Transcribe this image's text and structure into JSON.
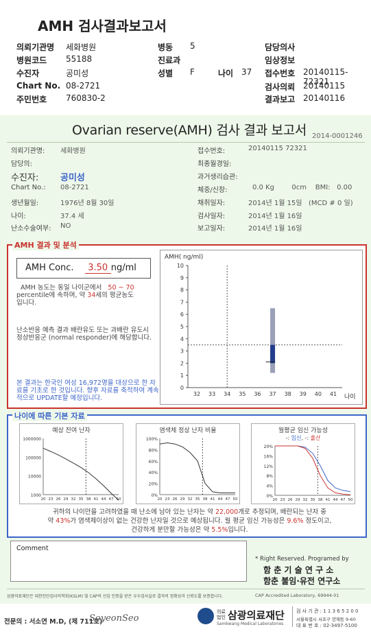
{
  "header": {
    "title": "AMH 검사결과보고서",
    "left": [
      {
        "label": "의뢰기관명",
        "value": "세화병원"
      },
      {
        "label": "병원코드",
        "value": "55188"
      },
      {
        "label": "수진자",
        "value": "공미성"
      },
      {
        "label": "Chart No.",
        "value": "08-2721"
      },
      {
        "label": "주민번호",
        "value": "760830-2"
      }
    ],
    "mid": {
      "ward_label": "병동",
      "ward_value": "5",
      "dept_label": "진료과",
      "sex_label": "성별",
      "sex_value": "F",
      "age_label": "나이",
      "age_value": "37"
    },
    "right": [
      {
        "label": "담당의사",
        "value": ""
      },
      {
        "label": "임상정보",
        "value": ""
      },
      {
        "label": "접수번호",
        "value": "20140115-72321"
      },
      {
        "label": "검사의뢰",
        "value": "20140115"
      },
      {
        "label": "결과보고",
        "value": "20140116"
      }
    ]
  },
  "report": {
    "title": "Ovarian reserve(AMH) 검사 결과 보고서",
    "doc_no": "2014-0001246",
    "left_fields": [
      {
        "label": "의뢰기관명:",
        "value": "세화병원"
      },
      {
        "label": "담당의:",
        "value": ""
      },
      {
        "label": "수진자:",
        "value": "공미성"
      },
      {
        "label": "Chart No.:",
        "value": "08-2721"
      },
      {
        "label": "생년월일:",
        "value": "1976년 8월 30일"
      },
      {
        "label": "나이:",
        "value": "37.4 세"
      },
      {
        "label": "난소수술여부:",
        "value": "NO"
      }
    ],
    "right_fields": [
      {
        "label": "접수번호:",
        "value": "20140115 72321"
      },
      {
        "label": "최종월경일:",
        "value": ""
      },
      {
        "label": "과거생리습관:",
        "value": ""
      },
      {
        "label": "체중/신장:",
        "value": "0.0 Kg        0cm    BMI:   0.00"
      },
      {
        "label": "채취일자:",
        "value": "2014년 1월 15일   (MCD # 0 일)"
      },
      {
        "label": "검사일자:",
        "value": "2014년 1월 16일"
      },
      {
        "label": "보고일자:",
        "value": "2014년 1월 16일"
      }
    ]
  },
  "amh": {
    "section_label": "AMH 결과 및 분석",
    "conc_label": "AMH Conc.",
    "conc_value": "3.50",
    "conc_unit": "ng/ml",
    "p1_a": "AMH 농도는 동일 나이군에서",
    "p1_range": "50 ~  70",
    "p1_b": "percentile에 속하며, 약",
    "p1_age": "34",
    "p1_c": "세의 평균농도",
    "p1_d": "입니다.",
    "p2": "난소반응 예측 결과 배란유도 또는 과배란 유도시 정상반응군 (normal responder)에 해당합니다.",
    "note": "본 결과는 한국인 여성 16,972명을 대상으로 한 자료를 기초로 한 것입니다. 향후 자료를 축적하여 계속적으로 UPDATE할 예정입니다."
  },
  "chart_data": [
    {
      "type": "box",
      "title": "",
      "ylabel": "AMH( ng/ml)",
      "xlabel": "나이",
      "ylim": [
        0,
        10
      ],
      "yticks": [
        0,
        1,
        2,
        3,
        4,
        5,
        6,
        7,
        8,
        9,
        10
      ],
      "xticks": [
        32,
        33,
        34,
        35,
        36,
        37,
        38,
        39,
        40,
        41
      ],
      "reference_age": 34,
      "reference_value": 3.5,
      "age_box": {
        "age": 37,
        "whisker_low": 1.2,
        "whisker_high": 6.5,
        "q1": 2.0,
        "q3": 3.5,
        "median": 2.1
      },
      "patient_value": 3.5
    },
    {
      "type": "line",
      "title": "예상 잔여 난자",
      "yscale": "log",
      "yticks": [
        "1000000",
        "100000",
        "10000",
        "1000"
      ],
      "x": [
        20,
        23,
        26,
        29,
        32,
        35,
        38,
        41,
        44,
        47,
        50
      ],
      "values": [
        300000,
        200000,
        130000,
        80000,
        48000,
        28000,
        15000,
        7000,
        3000,
        1200,
        500
      ],
      "marker_age": 37
    },
    {
      "type": "line",
      "title": "염색체 정상 난자 비율",
      "yticks": [
        "100%",
        "80%",
        "60%",
        "40%",
        "20%",
        "0%"
      ],
      "x": [
        20,
        23,
        26,
        29,
        32,
        35,
        38,
        41,
        44,
        47,
        50
      ],
      "values": [
        90,
        92,
        90,
        85,
        75,
        60,
        20,
        5,
        3,
        3,
        3
      ],
      "marker_age": 37
    },
    {
      "type": "line",
      "title": "월평균 임신 가능성",
      "legend": [
        "임신",
        "출산"
      ],
      "yticks": [
        "20%",
        "16%",
        "12%",
        "8%",
        "4%",
        "0%"
      ],
      "x": [
        20,
        23,
        26,
        29,
        32,
        35,
        38,
        41,
        44,
        47,
        50
      ],
      "series": [
        {
          "name": "임신",
          "values": [
            20,
            20,
            20,
            20,
            19.5,
            17,
            12,
            6,
            3,
            2,
            1.5
          ]
        },
        {
          "name": "출산",
          "values": [
            20,
            20,
            20,
            20,
            19,
            15,
            8,
            3,
            1,
            0.5,
            0.2
          ]
        }
      ],
      "marker_age": 37
    }
  ],
  "age_basic": {
    "section_label": "나이에 따른 기본 자료",
    "summary_1": "귀하의 나이만을 고려하였을 때 난소에 남아 있는 난자는 약",
    "summary_count": "22,000",
    "summary_2": "개로 추정되며, 배란되는 난자 중",
    "summary_3": "약",
    "summary_pct1": "43%",
    "summary_4": "가 염색체이상이 없는 건강한 난자일 것으로 예상됩니다. 월 평균 임신 가능성은",
    "summary_pct2": "9.6%",
    "summary_5": "정도이고,",
    "summary_6": "건강하게 분만할 가능성은 약",
    "summary_pct3": "5.5%",
    "summary_7": "입니다."
  },
  "comment": {
    "label": "Comment"
  },
  "credit": {
    "right_reserved": "* Right Reserved. Programed by",
    "org1": "함 춘 기 술 연 구 소",
    "org2": "함춘 불임·유전 연구소"
  },
  "footer": {
    "disclaimer": "삼광의료재단은 대한진단검사의학회(KSLM) 및 CAP의 신임 인증을 받은 우수검사실로 결과의 정확성과 신뢰도를 보증합니다.",
    "cap": "CAP Accredited Laboratory, 69944-01",
    "signer": "전문의 : 서소연 M.D, (제 711호)",
    "signature": "SoyeonSeo",
    "org_name": "삼광의료재단",
    "org_sub": "Samkwang Medical Laboratories",
    "org_prefix": "의료 법인",
    "addr1": "검 사 기 관 : 1 1 3 6 5 2 0 0",
    "addr2": "서울특별시 서초구 양재동 9-60",
    "addr3": "대 표 번 호 : 02-3497-5100"
  }
}
